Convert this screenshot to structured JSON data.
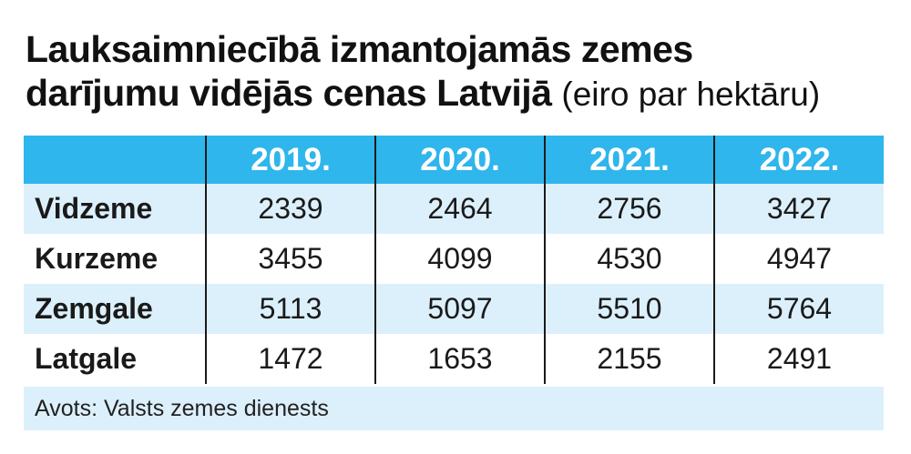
{
  "title": {
    "line1": "Lauksaimniecībā izmantojamās zemes",
    "line2": "darījumu vidējās cenas Latvijā",
    "unit": "(eiro par hektāru)"
  },
  "chart_data": {
    "type": "table",
    "columns": [
      "",
      "2019.",
      "2020.",
      "2021.",
      "2022."
    ],
    "rows": [
      {
        "region": "Vidzeme",
        "values": [
          "2339",
          "2464",
          "2756",
          "3427"
        ]
      },
      {
        "region": "Kurzeme",
        "values": [
          "3455",
          "4099",
          "4530",
          "4947"
        ]
      },
      {
        "region": "Zemgale",
        "values": [
          "5113",
          "5097",
          "5510",
          "5764"
        ]
      },
      {
        "region": "Latgale",
        "values": [
          "1472",
          "1653",
          "2155",
          "2491"
        ]
      }
    ],
    "header_color": "#2fb6ec",
    "stripe_color": "#dcf0fb"
  },
  "source": "Avots: Valsts zemes dienests"
}
